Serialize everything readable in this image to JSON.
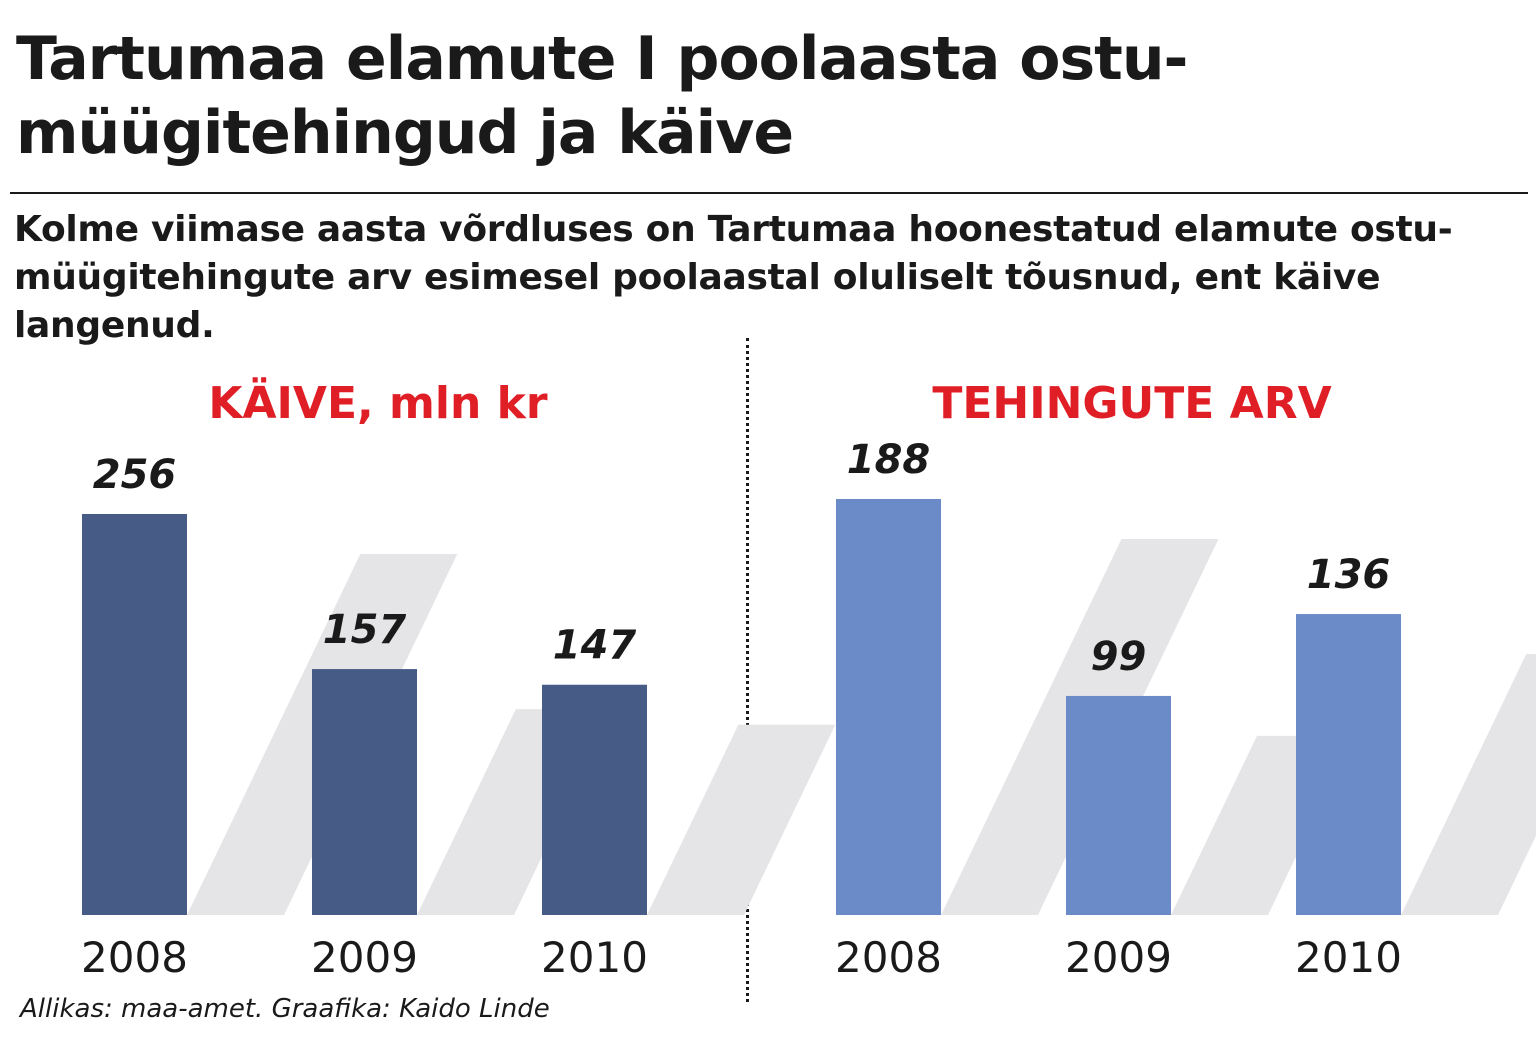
{
  "headline": "Tartumaa elamute I poolaasta ostu-müügitehingud ja käive",
  "lead": "Kolme viimase aasta võrdluses on Tartumaa hoonestatud elamute ostu-müügitehingute arv esimesel poolaastal oluliselt tõusnud, ent käive langenud.",
  "source": "Allikas: maa-amet. Graafika: Kaido Linde",
  "colors": {
    "title_red": "#e01e26",
    "bar_dark": "#475b87",
    "bar_light": "#6b8bc8",
    "shadow": "#e5e5e8"
  },
  "chart_data": [
    {
      "type": "bar",
      "title": "KÄIVE, mln kr",
      "categories": [
        "2008",
        "2009",
        "2010"
      ],
      "values": [
        256,
        157,
        147
      ],
      "value_labels": [
        "256",
        "157",
        "147"
      ],
      "color": "#475b87"
    },
    {
      "type": "bar",
      "title": "TEHINGUTE ARV",
      "categories": [
        "2008",
        "2009",
        "2010"
      ],
      "values": [
        188,
        99,
        136
      ],
      "value_labels": [
        "188",
        "99",
        "136"
      ],
      "color": "#6b8bc8"
    }
  ]
}
